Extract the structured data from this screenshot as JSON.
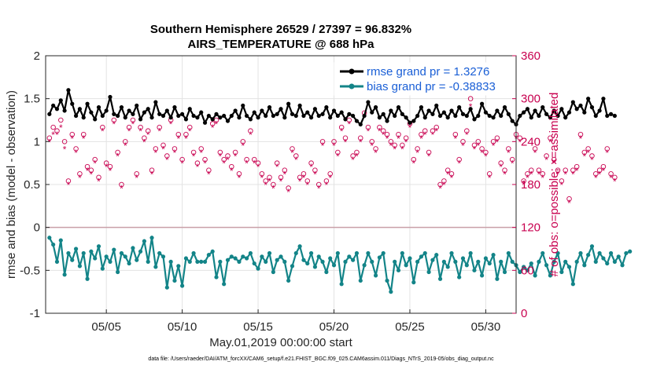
{
  "chart_data": {
    "type": "line",
    "title_line1": "Southern Hemisphere 26529 / 27397 = 96.832%",
    "title_line2": "AIRS_TEMPERATURE @ 688 hPa",
    "xlabel": "May.01,2019 00:00:00 start",
    "ylabel_left": "rmse and bias (model - observation)",
    "ylabel_right": "# of obs: o=possible; ×=assimilated",
    "xlim": [
      1,
      32
    ],
    "ylim_left": [
      -1,
      2
    ],
    "ylim_right": [
      0,
      360
    ],
    "x_ticks": [
      {
        "label": "05/05",
        "x": 5
      },
      {
        "label": "05/10",
        "x": 10
      },
      {
        "label": "05/15",
        "x": 15
      },
      {
        "label": "05/20",
        "x": 20
      },
      {
        "label": "05/25",
        "x": 25
      },
      {
        "label": "05/30",
        "x": 30
      }
    ],
    "y_ticks_left": [
      "2",
      "1.5",
      "1",
      "0.5",
      "0",
      "-0.5",
      "-1"
    ],
    "y_ticks_right": [
      "360",
      "300",
      "240",
      "180",
      "120",
      "60",
      "0"
    ],
    "colors": {
      "rmse": "#000000",
      "bias": "#138488",
      "obs": "#c8004f",
      "zero": "#c9a0a8",
      "legend": "#1a5fd6"
    },
    "legend": [
      {
        "name": "rmse grand pr = 1.3276",
        "series": "rmse"
      },
      {
        "name": "bias grand pr = -0.38833",
        "series": "bias"
      }
    ],
    "step_days": 0.25,
    "series": [
      {
        "name": "rmse",
        "axis": "left",
        "values": [
          1.32,
          1.42,
          1.38,
          1.48,
          1.36,
          1.6,
          1.44,
          1.3,
          1.38,
          1.28,
          1.44,
          1.34,
          1.26,
          1.4,
          1.3,
          1.36,
          1.52,
          1.32,
          1.3,
          1.4,
          1.28,
          1.36,
          1.32,
          1.42,
          1.26,
          1.34,
          1.38,
          1.28,
          1.46,
          1.32,
          1.3,
          1.36,
          1.28,
          1.4,
          1.3,
          1.32,
          1.26,
          1.38,
          1.3,
          1.28,
          1.34,
          1.22,
          1.3,
          1.26,
          1.32,
          1.28,
          1.3,
          1.24,
          1.3,
          1.36,
          1.28,
          1.42,
          1.3,
          1.26,
          1.34,
          1.28,
          1.36,
          1.3,
          1.4,
          1.3,
          1.32,
          1.38,
          1.28,
          1.44,
          1.32,
          1.3,
          1.42,
          1.3,
          1.34,
          1.28,
          1.38,
          1.3,
          1.32,
          1.4,
          1.28,
          1.36,
          1.3,
          1.34,
          1.26,
          1.32,
          1.3,
          1.24,
          1.2,
          1.3,
          1.46,
          1.34,
          1.4,
          1.28,
          1.32,
          1.24,
          1.36,
          1.3,
          1.4,
          1.32,
          1.28,
          1.22,
          1.24,
          1.3,
          1.4,
          1.28,
          1.36,
          1.32,
          1.42,
          1.3,
          1.34,
          1.28,
          1.36,
          1.3,
          1.4,
          1.32,
          1.3,
          1.38,
          1.26,
          1.3,
          1.44,
          1.34,
          1.3,
          1.28,
          1.36,
          1.3,
          1.4,
          1.32,
          1.24,
          1.2,
          1.3,
          1.34,
          1.38,
          1.28,
          1.36,
          1.3,
          1.4,
          1.32,
          1.28,
          1.36,
          1.3,
          1.38,
          1.28,
          1.34,
          1.46,
          1.38,
          1.42,
          1.34,
          1.5,
          1.4,
          1.3,
          1.36,
          1.5,
          1.3,
          1.32,
          1.3
        ]
      },
      {
        "name": "bias",
        "axis": "left",
        "values": [
          -0.12,
          -0.2,
          -0.4,
          -0.15,
          -0.55,
          -0.3,
          -0.38,
          -0.25,
          -0.45,
          -0.3,
          -0.6,
          -0.28,
          -0.36,
          -0.22,
          -0.48,
          -0.34,
          -0.4,
          -0.26,
          -0.52,
          -0.3,
          -0.34,
          -0.42,
          -0.24,
          -0.38,
          -0.28,
          -0.16,
          -0.4,
          -0.12,
          -0.46,
          -0.3,
          -0.34,
          -0.7,
          -0.4,
          -0.62,
          -0.45,
          -0.68,
          -0.36,
          -0.4,
          -0.3,
          -0.4,
          -0.4,
          -0.4,
          -0.32,
          -0.28,
          -0.58,
          -0.4,
          -0.66,
          -0.38,
          -0.34,
          -0.36,
          -0.4,
          -0.34,
          -0.36,
          -0.3,
          -0.42,
          -0.48,
          -0.34,
          -0.4,
          -0.3,
          -0.52,
          -0.38,
          -0.34,
          -0.4,
          -0.62,
          -0.45,
          -0.3,
          -0.22,
          -0.38,
          -0.42,
          -0.3,
          -0.46,
          -0.34,
          -0.4,
          -0.52,
          -0.36,
          -0.44,
          -0.3,
          -0.66,
          -0.4,
          -0.34,
          -0.38,
          -0.3,
          -0.62,
          -0.44,
          -0.3,
          -0.4,
          -0.56,
          -0.35,
          -0.3,
          -0.62,
          -0.75,
          -0.4,
          -0.5,
          -0.3,
          -0.44,
          -0.36,
          -0.64,
          -0.4,
          -0.34,
          -0.3,
          -0.52,
          -0.38,
          -0.32,
          -0.6,
          -0.4,
          -0.46,
          -0.3,
          -0.4,
          -0.58,
          -0.36,
          -0.44,
          -0.3,
          -0.5,
          -0.4,
          -0.56,
          -0.36,
          -0.42,
          -0.32,
          -0.6,
          -0.4,
          -0.52,
          -0.3,
          -0.4,
          -0.44,
          -0.52,
          -0.46,
          -0.5,
          -0.42,
          -0.56,
          -0.4,
          -0.3,
          -0.44,
          -0.56,
          -0.4,
          -0.3,
          -0.52,
          -0.4,
          -0.46,
          -0.66,
          -0.4,
          -0.3,
          -0.44,
          -0.32,
          -0.22,
          -0.4,
          -0.3,
          -0.36,
          -0.42,
          -0.3,
          -0.4,
          -0.34,
          -0.44,
          -0.3,
          -0.28
        ]
      },
      {
        "name": "obs_possible",
        "axis": "right",
        "values": [
          245,
          260,
          255,
          270,
          240,
          185,
          250,
          230,
          195,
          250,
          205,
          200,
          215,
          190,
          260,
          210,
          205,
          270,
          225,
          180,
          240,
          260,
          270,
          195,
          260,
          245,
          255,
          200,
          230,
          260,
          235,
          220,
          270,
          230,
          250,
          215,
          250,
          260,
          225,
          210,
          230,
          215,
          200,
          265,
          270,
          225,
          215,
          220,
          205,
          225,
          195,
          240,
          215,
          255,
          215,
          210,
          195,
          185,
          190,
          180,
          210,
          190,
          200,
          175,
          230,
          220,
          190,
          195,
          185,
          210,
          200,
          180,
          240,
          185,
          195,
          240,
          225,
          260,
          245,
          270,
          220,
          225,
          245,
          280,
          260,
          240,
          230,
          260,
          255,
          250,
          240,
          235,
          250,
          235,
          245,
          265,
          215,
          230,
          250,
          255,
          225,
          255,
          260,
          180,
          185,
          200,
          195,
          250,
          215,
          240,
          255,
          300,
          235,
          240,
          230,
          225,
          195,
          240,
          245,
          210,
          200,
          230,
          215,
          250,
          245,
          185,
          195,
          200,
          230,
          200,
          195,
          220,
          245,
          215,
          200,
          185,
          200,
          160,
          200,
          205,
          250,
          225,
          230,
          220,
          195,
          200,
          205,
          230,
          195,
          190
        ]
      },
      {
        "name": "obs_assimilated",
        "axis": "right",
        "values": [
          240,
          250,
          250,
          260,
          230,
          180,
          245,
          225,
          190,
          245,
          200,
          195,
          210,
          185,
          255,
          205,
          200,
          265,
          220,
          175,
          235,
          255,
          265,
          190,
          255,
          240,
          250,
          195,
          225,
          255,
          230,
          215,
          265,
          225,
          245,
          210,
          245,
          255,
          220,
          205,
          225,
          210,
          195,
          260,
          265,
          220,
          210,
          215,
          200,
          220,
          190,
          235,
          210,
          250,
          210,
          205,
          190,
          180,
          185,
          175,
          205,
          185,
          195,
          170,
          225,
          215,
          185,
          190,
          180,
          205,
          195,
          175,
          235,
          180,
          190,
          235,
          220,
          255,
          240,
          265,
          215,
          220,
          240,
          275,
          255,
          235,
          225,
          255,
          250,
          245,
          235,
          230,
          245,
          230,
          240,
          260,
          210,
          225,
          245,
          250,
          220,
          250,
          255,
          175,
          180,
          195,
          190,
          245,
          210,
          235,
          250,
          290,
          230,
          235,
          225,
          220,
          190,
          235,
          240,
          205,
          195,
          225,
          210,
          245,
          240,
          180,
          190,
          195,
          225,
          195,
          190,
          215,
          240,
          210,
          195,
          180,
          195,
          155,
          195,
          200,
          245,
          220,
          225,
          215,
          190,
          195,
          200,
          225,
          190,
          185
        ]
      }
    ]
  },
  "footer": "data file: /Users/raeder/DAI/ATM_forcXX/CAM6_setup/f.e21.FHIST_BGC.f09_025.CAM6assim.011/Diags_NTrS_2019-05/obs_diag_output.nc"
}
